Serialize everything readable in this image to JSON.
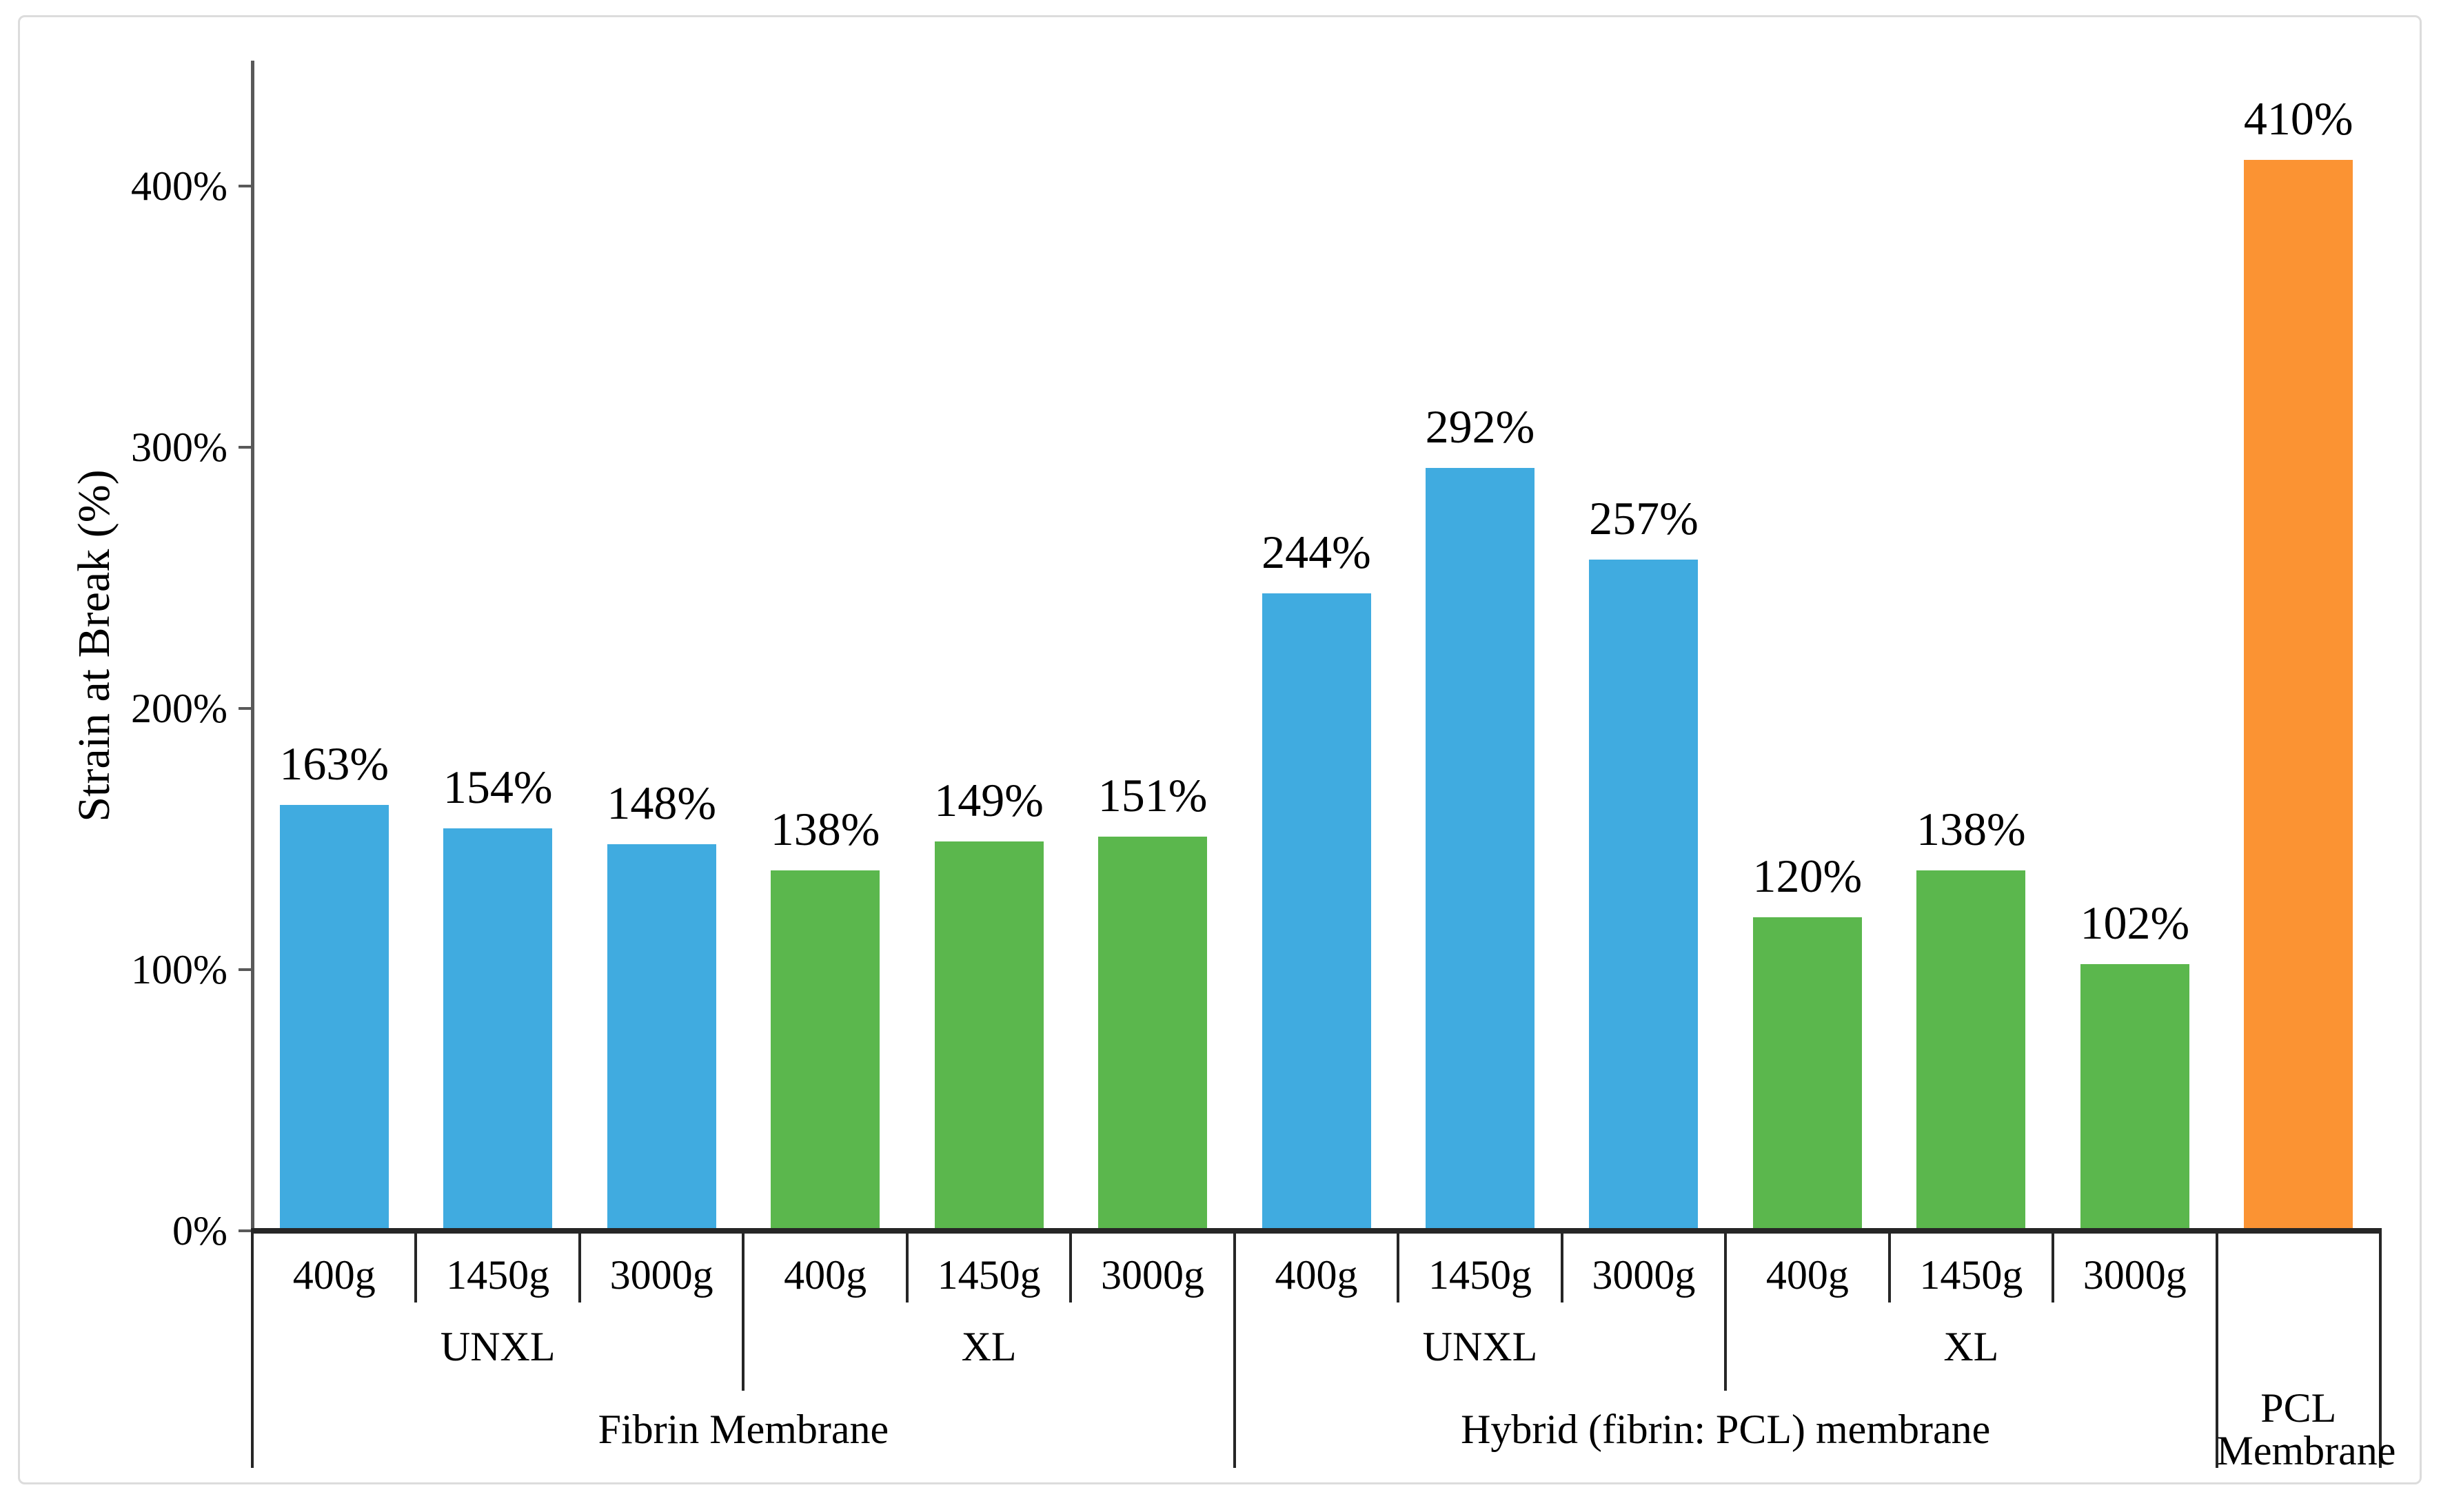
{
  "chart_data": {
    "type": "bar",
    "title": "",
    "xlabel": "",
    "ylabel": "Strain at Break (%)",
    "ylim": [
      0,
      450
    ],
    "grid": false,
    "legend": "none",
    "value_suffix": "%",
    "yticks": [
      {
        "value": 0,
        "label": "0%"
      },
      {
        "value": 100,
        "label": "100%"
      },
      {
        "value": 200,
        "label": "200%"
      },
      {
        "value": 300,
        "label": "300%"
      },
      {
        "value": 400,
        "label": "400%"
      }
    ],
    "colors": {
      "unxl_blue": "#40ABE0",
      "xl_green": "#5BB74D",
      "pcl_orange": "#FB9333",
      "axis_gray": "#595959",
      "line_dark": "#262626",
      "frame_gray": "#dcdcdc"
    },
    "groups": [
      {
        "label": "Fibrin Membrane",
        "label_lines": [
          "Fibrin Membrane"
        ],
        "subgroups": [
          {
            "label": "UNXL",
            "color": "#40ABE0",
            "bars": [
              {
                "category": "400g",
                "value": 163,
                "label": "163%"
              },
              {
                "category": "1450g",
                "value": 154,
                "label": "154%"
              },
              {
                "category": "3000g",
                "value": 148,
                "label": "148%"
              }
            ]
          },
          {
            "label": "XL",
            "color": "#5BB74D",
            "bars": [
              {
                "category": "400g",
                "value": 138,
                "label": "138%"
              },
              {
                "category": "1450g",
                "value": 149,
                "label": "149%"
              },
              {
                "category": "3000g",
                "value": 151,
                "label": "151%"
              }
            ]
          }
        ]
      },
      {
        "label": "Hybrid (fibrin: PCL) membrane",
        "label_lines": [
          "Hybrid (fibrin: PCL) membrane"
        ],
        "subgroups": [
          {
            "label": "UNXL",
            "color": "#40ABE0",
            "bars": [
              {
                "category": "400g",
                "value": 244,
                "label": "244%"
              },
              {
                "category": "1450g",
                "value": 292,
                "label": "292%"
              },
              {
                "category": "3000g",
                "value": 257,
                "label": "257%"
              }
            ]
          },
          {
            "label": "XL",
            "color": "#5BB74D",
            "bars": [
              {
                "category": "400g",
                "value": 120,
                "label": "120%"
              },
              {
                "category": "1450g",
                "value": 138,
                "label": "138%"
              },
              {
                "category": "3000g",
                "value": 102,
                "label": "102%"
              }
            ]
          }
        ]
      },
      {
        "label": "PCL Membrane",
        "label_lines": [
          "PCL",
          "Membrane"
        ],
        "subgroups": [
          {
            "label": "",
            "color": "#FB9333",
            "bars": [
              {
                "category": "",
                "value": 410,
                "label": "410%"
              }
            ]
          }
        ]
      }
    ]
  }
}
